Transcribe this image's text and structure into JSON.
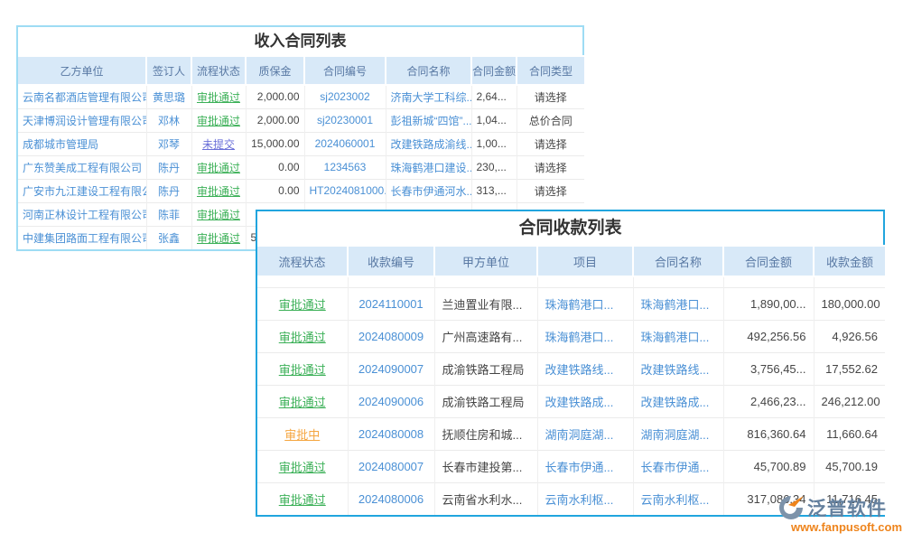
{
  "colors": {
    "panel1_border": "#9edcf4",
    "panel2_border": "#21a5de",
    "header_bg": "#d8e9f8",
    "header_text": "#5878a3",
    "link_blue": "#4a90d5",
    "status_green": "#3bb057",
    "status_orange": "#f5a53f",
    "status_purple": "#6a6fd8",
    "logo_text": "#64809e",
    "logo_url": "#ee841c"
  },
  "status_styles": {
    "审批通过": "green",
    "审批中": "orange",
    "未提交": "purple"
  },
  "income_contracts": {
    "title": "收入合同列表",
    "columns": [
      "乙方单位",
      "签订人",
      "流程状态",
      "质保金",
      "合同编号",
      "合同名称",
      "合同金额",
      "合同类型"
    ],
    "col_keys": [
      "party-b-unit",
      "signer",
      "flow-status",
      "retention-money",
      "contract-no",
      "contract-name",
      "contract-amount",
      "contract-type"
    ],
    "col_types": [
      "link",
      "link",
      "status",
      "num",
      "link",
      "link",
      "trunc",
      "select"
    ],
    "rows": [
      [
        "云南名都酒店管理有限公司",
        "黄思璐",
        "审批通过",
        "2,000.00",
        "sj2023002",
        "济南大学工科综...",
        "2,64...",
        "请选择"
      ],
      [
        "天津博润设计管理有限公司",
        "邓林",
        "审批通过",
        "2,000.00",
        "sj20230001",
        "彭祖新城“四馆”...",
        "1,04...",
        "总价合同"
      ],
      [
        "成都城市管理局",
        "邓琴",
        "未提交",
        "15,000.00",
        "2024060001",
        "改建铁路成渝线...",
        "1,00...",
        "请选择"
      ],
      [
        "广东赞美成工程有限公司",
        "陈丹",
        "审批通过",
        "0.00",
        "1234563",
        "珠海鹤港口建设...",
        "230,...",
        "请选择"
      ],
      [
        "广安市九江建设工程有限公司",
        "陈丹",
        "审批通过",
        "0.00",
        "HT2024081000...",
        "长春市伊通河水...",
        "313,...",
        "请选择"
      ],
      [
        "河南正林设计工程有限公司",
        "陈菲",
        "审批通过",
        "",
        "",
        "",
        "",
        ""
      ],
      [
        "中建集团路面工程有限公司",
        "张鑫",
        "审批通过",
        "5",
        "",
        "",
        "",
        ""
      ]
    ]
  },
  "payments": {
    "title": "合同收款列表",
    "columns": [
      "流程状态",
      "收款编号",
      "甲方单位",
      "项目",
      "合同名称",
      "合同金额",
      "收款金额"
    ],
    "col_keys": [
      "flow-status",
      "receipt-no",
      "party-a-unit",
      "project",
      "contract-name",
      "contract-amount",
      "receipt-amount"
    ],
    "col_types": [
      "status",
      "link",
      "text",
      "link",
      "link",
      "num",
      "num"
    ],
    "rows": [
      [
        "审批通过",
        "2024110001",
        "兰迪置业有限...",
        "珠海鹤港口...",
        "珠海鹤港口...",
        "1,890,00...",
        "180,000.00"
      ],
      [
        "审批通过",
        "2024080009",
        "广州高速路有...",
        "珠海鹤港口...",
        "珠海鹤港口...",
        "492,256.56",
        "4,926.56"
      ],
      [
        "审批通过",
        "2024090007",
        "成渝铁路工程局",
        "改建铁路线...",
        "改建铁路线...",
        "3,756,45...",
        "17,552.62"
      ],
      [
        "审批通过",
        "2024090006",
        "成渝铁路工程局",
        "改建铁路成...",
        "改建铁路成...",
        "2,466,23...",
        "246,212.00"
      ],
      [
        "审批中",
        "2024080008",
        "抚顺住房和城...",
        "湖南洞庭湖...",
        "湖南洞庭湖...",
        "816,360.64",
        "11,660.64"
      ],
      [
        "审批通过",
        "2024080007",
        "长春市建投第...",
        "长春市伊通...",
        "长春市伊通...",
        "45,700.89",
        "45,700.19"
      ],
      [
        "审批通过",
        "2024080006",
        "云南省水利水...",
        "云南水利枢...",
        "云南水利枢...",
        "317,086.34",
        "11,716.45"
      ]
    ]
  },
  "watermark": {
    "brand": "泛普软件",
    "url": "www.fanpusoft.com",
    "icon": "fanpu-logo-icon"
  }
}
